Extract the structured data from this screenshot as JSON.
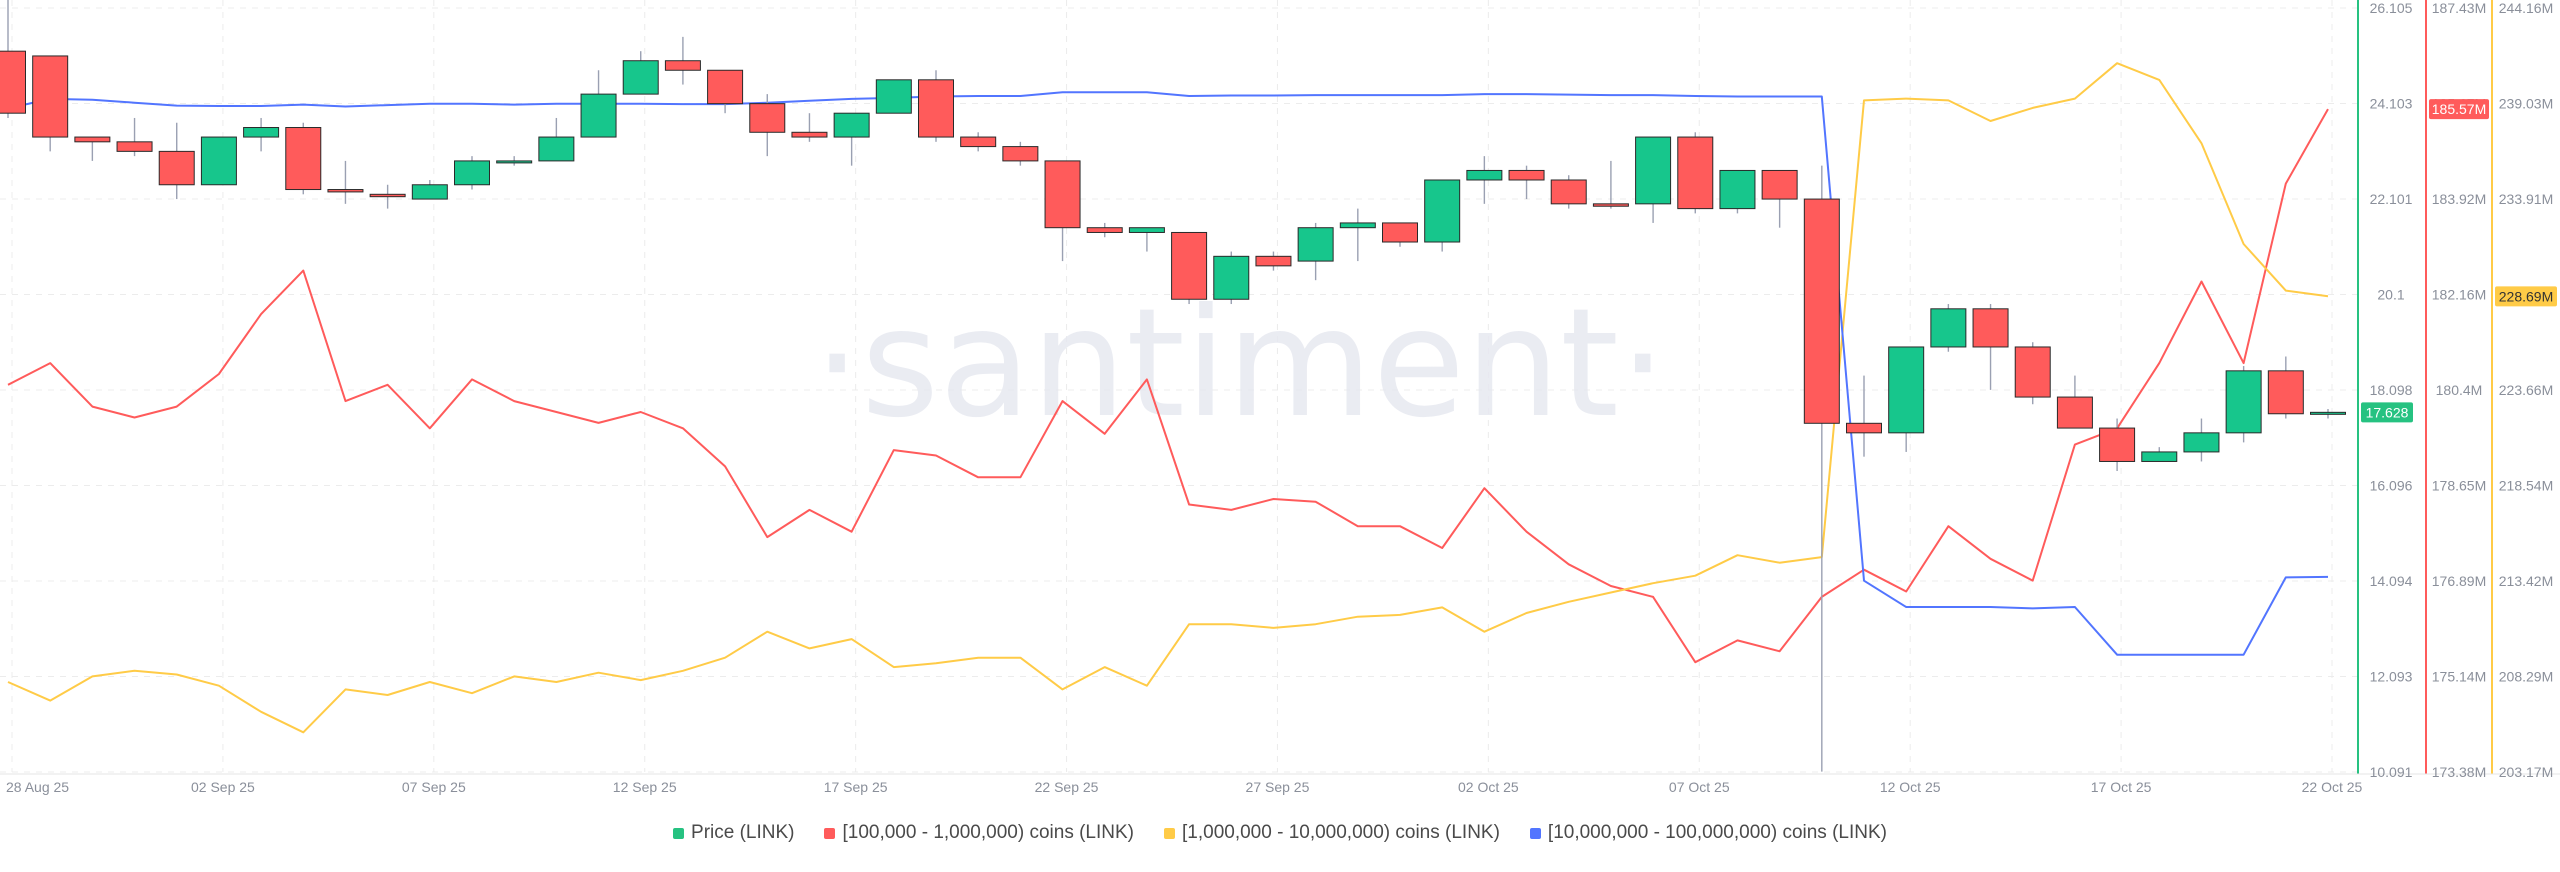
{
  "watermark": "·santiment·",
  "legend": [
    {
      "label": "Price (LINK)",
      "color": "#26c281"
    },
    {
      "label": "[100,000  - 1,000,000) coins (LINK)",
      "color": "#ff5b5b"
    },
    {
      "label": "[1,000,000 - 10,000,000) coins (LINK)",
      "color": "#ffcb47"
    },
    {
      "label": "[10,000,000 - 100,000,000) coins (LINK)",
      "color": "#5275ff"
    }
  ],
  "chart_data": {
    "type": "line",
    "dates": [
      "28 Aug 25",
      "29 Aug",
      "30 Aug",
      "31 Aug",
      "01 Sep",
      "02 Sep",
      "03 Sep",
      "04 Sep",
      "05 Sep",
      "06 Sep",
      "07 Sep",
      "08 Sep",
      "09 Sep",
      "10 Sep",
      "11 Sep",
      "12 Sep",
      "13 Sep",
      "14 Sep",
      "15 Sep",
      "16 Sep",
      "17 Sep",
      "18 Sep",
      "19 Sep",
      "20 Sep",
      "21 Sep",
      "22 Sep",
      "23 Sep",
      "24 Sep",
      "25 Sep",
      "26 Sep",
      "27 Sep",
      "28 Sep",
      "29 Sep",
      "30 Sep",
      "01 Oct",
      "02 Oct",
      "03 Oct",
      "04 Oct",
      "05 Oct",
      "06 Oct",
      "07 Oct",
      "08 Oct",
      "09 Oct",
      "10 Oct",
      "11 Oct",
      "12 Oct",
      "13 Oct",
      "14 Oct",
      "15 Oct",
      "16 Oct",
      "17 Oct",
      "18 Oct",
      "19 Oct",
      "20 Oct",
      "21 Oct",
      "22 Oct"
    ],
    "x_tick_labels": [
      "28 Aug 25",
      "02 Sep 25",
      "07 Sep 25",
      "12 Sep 25",
      "17 Sep 25",
      "22 Sep 25",
      "27 Sep 25",
      "02 Oct 25",
      "07 Oct 25",
      "12 Oct 25",
      "17 Oct 25",
      "22 Oct 25"
    ],
    "x_tick_indices": [
      0,
      5,
      10,
      15,
      20,
      25,
      30,
      35,
      40,
      45,
      50,
      55
    ],
    "axes": {
      "price": {
        "ticks": [
          "26.105",
          "24.103",
          "22.101",
          "20.1",
          "18.098",
          "16.096",
          "14.094",
          "12.093",
          "10.091"
        ],
        "range": [
          10.091,
          26.105
        ],
        "color": "#26c281"
      },
      "red": {
        "ticks": [
          "187.43M",
          "185.67M",
          "183.92M",
          "182.16M",
          "180.4M",
          "178.65M",
          "176.89M",
          "175.14M",
          "173.38M"
        ],
        "range": [
          173.38,
          187.43
        ],
        "unit": "M",
        "color": "#ff5b5b"
      },
      "yellow": {
        "ticks": [
          "244.16M",
          "239.03M",
          "233.91M",
          "228.79M",
          "223.66M",
          "218.54M",
          "213.42M",
          "208.29M",
          "203.17M"
        ],
        "range": [
          203.17,
          244.16
        ],
        "unit": "M",
        "color": "#ffcb47"
      }
    },
    "current_labels": {
      "price": "17.628",
      "red": "185.57M",
      "yellow": "228.69M"
    },
    "grid": true,
    "legend_position": "bottom",
    "candles": [
      {
        "o": 25.2,
        "h": 26.6,
        "l": 23.8,
        "c": 23.9
      },
      {
        "o": 25.1,
        "h": 25.1,
        "l": 23.1,
        "c": 23.4
      },
      {
        "o": 23.4,
        "h": 23.4,
        "l": 22.9,
        "c": 23.3
      },
      {
        "o": 23.3,
        "h": 23.8,
        "l": 23.0,
        "c": 23.1
      },
      {
        "o": 23.1,
        "h": 23.7,
        "l": 22.1,
        "c": 22.4
      },
      {
        "o": 22.4,
        "h": 23.4,
        "l": 22.4,
        "c": 23.4
      },
      {
        "o": 23.4,
        "h": 23.8,
        "l": 23.1,
        "c": 23.6
      },
      {
        "o": 23.6,
        "h": 23.7,
        "l": 22.2,
        "c": 22.3
      },
      {
        "o": 22.3,
        "h": 22.9,
        "l": 22.0,
        "c": 22.25
      },
      {
        "o": 22.2,
        "h": 22.4,
        "l": 21.9,
        "c": 22.15
      },
      {
        "o": 22.1,
        "h": 22.5,
        "l": 22.1,
        "c": 22.4
      },
      {
        "o": 22.4,
        "h": 23.0,
        "l": 22.3,
        "c": 22.9
      },
      {
        "o": 22.9,
        "h": 23.0,
        "l": 22.8,
        "c": 22.9
      },
      {
        "o": 22.9,
        "h": 23.8,
        "l": 22.9,
        "c": 23.4
      },
      {
        "o": 23.4,
        "h": 24.8,
        "l": 23.4,
        "c": 24.3
      },
      {
        "o": 24.3,
        "h": 25.2,
        "l": 24.3,
        "c": 25.0
      },
      {
        "o": 25.0,
        "h": 25.5,
        "l": 24.5,
        "c": 24.8
      },
      {
        "o": 24.8,
        "h": 24.8,
        "l": 23.9,
        "c": 24.1
      },
      {
        "o": 24.1,
        "h": 24.3,
        "l": 23.0,
        "c": 23.5
      },
      {
        "o": 23.5,
        "h": 23.9,
        "l": 23.3,
        "c": 23.4
      },
      {
        "o": 23.4,
        "h": 23.9,
        "l": 22.8,
        "c": 23.9
      },
      {
        "o": 23.9,
        "h": 24.6,
        "l": 23.9,
        "c": 24.6
      },
      {
        "o": 24.6,
        "h": 24.8,
        "l": 23.3,
        "c": 23.4
      },
      {
        "o": 23.4,
        "h": 23.5,
        "l": 23.1,
        "c": 23.2
      },
      {
        "o": 23.2,
        "h": 23.3,
        "l": 22.8,
        "c": 22.9
      },
      {
        "o": 22.9,
        "h": 22.9,
        "l": 20.8,
        "c": 21.5
      },
      {
        "o": 21.5,
        "h": 21.6,
        "l": 21.3,
        "c": 21.4
      },
      {
        "o": 21.4,
        "h": 21.5,
        "l": 21.0,
        "c": 21.5
      },
      {
        "o": 21.4,
        "h": 21.4,
        "l": 19.9,
        "c": 20.0
      },
      {
        "o": 20.0,
        "h": 21.0,
        "l": 19.9,
        "c": 20.9
      },
      {
        "o": 20.9,
        "h": 21.0,
        "l": 20.6,
        "c": 20.7
      },
      {
        "o": 20.8,
        "h": 21.6,
        "l": 20.4,
        "c": 21.5
      },
      {
        "o": 21.5,
        "h": 21.9,
        "l": 20.8,
        "c": 21.6
      },
      {
        "o": 21.6,
        "h": 21.6,
        "l": 21.1,
        "c": 21.2
      },
      {
        "o": 21.2,
        "h": 22.5,
        "l": 21.0,
        "c": 22.5
      },
      {
        "o": 22.5,
        "h": 23.0,
        "l": 22.0,
        "c": 22.7
      },
      {
        "o": 22.7,
        "h": 22.8,
        "l": 22.1,
        "c": 22.5
      },
      {
        "o": 22.5,
        "h": 22.6,
        "l": 21.9,
        "c": 22.0
      },
      {
        "o": 22.0,
        "h": 22.9,
        "l": 21.9,
        "c": 21.95
      },
      {
        "o": 22.0,
        "h": 23.4,
        "l": 21.6,
        "c": 23.4
      },
      {
        "o": 23.4,
        "h": 23.5,
        "l": 21.8,
        "c": 21.9
      },
      {
        "o": 21.9,
        "h": 22.7,
        "l": 21.8,
        "c": 22.7
      },
      {
        "o": 22.7,
        "h": 22.7,
        "l": 21.5,
        "c": 22.1
      },
      {
        "o": 22.1,
        "h": 22.8,
        "l": 10.1,
        "c": 17.4
      },
      {
        "o": 17.4,
        "h": 18.4,
        "l": 16.7,
        "c": 17.2
      },
      {
        "o": 17.2,
        "h": 19.0,
        "l": 16.8,
        "c": 19.0
      },
      {
        "o": 19.0,
        "h": 19.9,
        "l": 18.9,
        "c": 19.8
      },
      {
        "o": 19.8,
        "h": 19.9,
        "l": 18.1,
        "c": 19.0
      },
      {
        "o": 19.0,
        "h": 19.1,
        "l": 17.8,
        "c": 17.95
      },
      {
        "o": 17.95,
        "h": 18.4,
        "l": 17.3,
        "c": 17.3
      },
      {
        "o": 17.3,
        "h": 17.5,
        "l": 16.4,
        "c": 16.6
      },
      {
        "o": 16.6,
        "h": 16.9,
        "l": 16.6,
        "c": 16.8
      },
      {
        "o": 16.8,
        "h": 17.5,
        "l": 16.6,
        "c": 17.2
      },
      {
        "o": 17.2,
        "h": 18.6,
        "l": 17.0,
        "c": 18.5
      },
      {
        "o": 18.5,
        "h": 18.8,
        "l": 17.5,
        "c": 17.6
      },
      {
        "o": 17.6,
        "h": 17.7,
        "l": 17.5,
        "c": 17.63
      }
    ],
    "series": [
      {
        "name": "[100,000  - 1,000,000) coins (LINK)",
        "axis": "red",
        "color": "#ff5b5b",
        "values": [
          180.5,
          180.9,
          180.1,
          179.9,
          180.1,
          180.7,
          181.8,
          182.6,
          180.2,
          180.5,
          179.7,
          180.6,
          180.2,
          180.0,
          179.8,
          180.0,
          179.7,
          179.0,
          177.7,
          178.2,
          177.8,
          179.3,
          179.2,
          178.8,
          178.8,
          180.2,
          179.6,
          180.6,
          178.3,
          178.2,
          178.4,
          178.35,
          177.9,
          177.9,
          177.5,
          178.6,
          177.8,
          177.2,
          176.8,
          176.6,
          175.4,
          175.8,
          175.6,
          176.6,
          177.1,
          176.7,
          177.9,
          177.3,
          176.9,
          179.4,
          179.7,
          180.9,
          182.4,
          180.9,
          184.2,
          185.57
        ]
      },
      {
        "name": "[1,000,000 - 10,000,000) coins (LINK)",
        "axis": "yellow",
        "color": "#ffcb47",
        "values": [
          208.0,
          207.0,
          208.3,
          208.6,
          208.4,
          207.8,
          206.4,
          205.3,
          207.6,
          207.3,
          208.0,
          207.4,
          208.3,
          208.0,
          208.5,
          208.1,
          208.6,
          209.3,
          210.7,
          209.8,
          210.3,
          208.8,
          209.0,
          209.3,
          209.3,
          207.6,
          208.8,
          207.8,
          211.1,
          211.1,
          210.9,
          211.1,
          211.5,
          211.6,
          212.0,
          210.7,
          211.7,
          212.3,
          212.8,
          213.3,
          213.7,
          214.8,
          214.4,
          214.7,
          239.2,
          239.3,
          239.2,
          238.1,
          238.8,
          239.3,
          241.2,
          240.3,
          236.9,
          231.5,
          229.0,
          228.69
        ]
      },
      {
        "name": "[10,000,000 - 100,000,000) coins (LINK)",
        "axis": "price",
        "color": "#5275ff",
        "values": [
          24.0,
          24.2,
          24.18,
          24.12,
          24.06,
          24.05,
          24.05,
          24.08,
          24.04,
          24.07,
          24.1,
          24.1,
          24.08,
          24.1,
          24.1,
          24.1,
          24.09,
          24.09,
          24.12,
          24.16,
          24.2,
          24.22,
          24.25,
          24.26,
          24.26,
          24.34,
          24.34,
          24.34,
          24.26,
          24.27,
          24.27,
          24.28,
          24.28,
          24.28,
          24.28,
          24.3,
          24.3,
          24.29,
          24.28,
          24.28,
          24.26,
          24.25,
          24.25,
          24.25,
          14.1,
          13.55,
          13.55,
          13.55,
          13.52,
          13.55,
          12.55,
          12.55,
          12.55,
          12.55,
          14.17,
          14.18
        ]
      }
    ]
  }
}
